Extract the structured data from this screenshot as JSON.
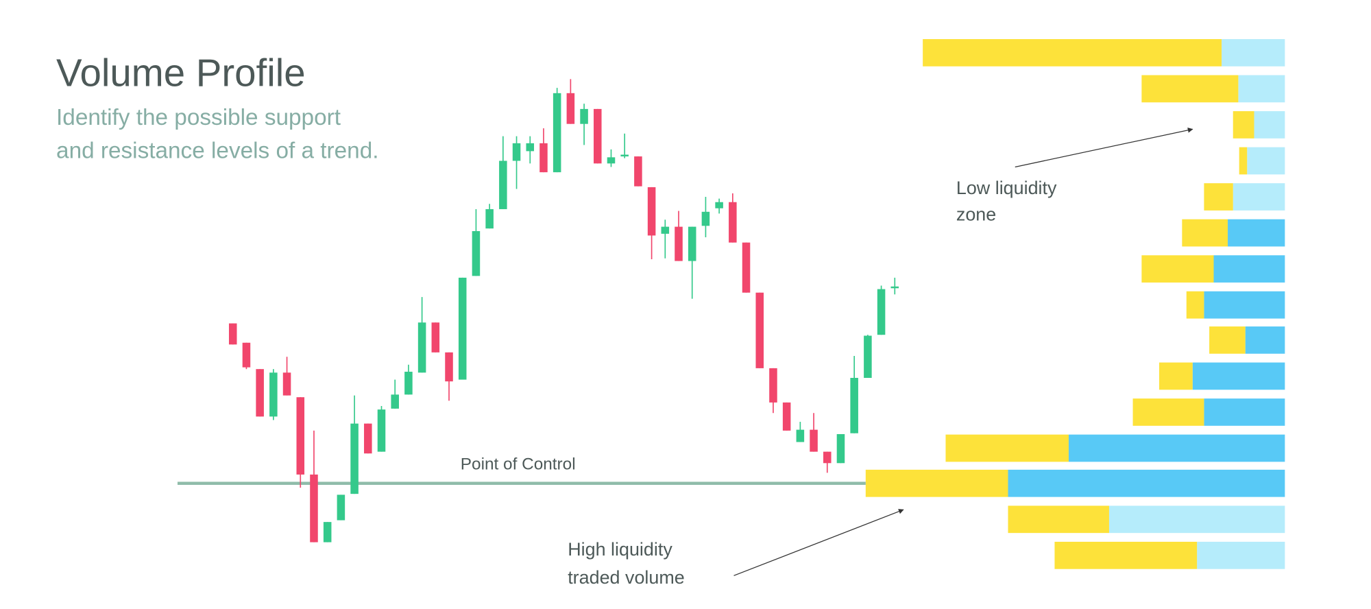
{
  "chart_data": {
    "type": "candlestick",
    "title": "Volume Profile",
    "subtitle": [
      "Identify the possible support",
      "and resistance levels of a trend."
    ],
    "annotations": [
      [
        "Point of Control"
      ],
      [
        "Low liquidity",
        "zone"
      ],
      [
        "High liquidity",
        "traded volume"
      ]
    ],
    "ylim": [
      0,
      693
    ],
    "open": [
      325,
      303,
      273,
      219,
      269,
      241,
      153,
      76,
      101,
      131,
      211,
      179,
      228,
      244,
      269,
      326,
      292,
      261,
      379,
      433,
      455,
      510,
      521,
      530,
      497,
      587,
      552,
      569,
      507,
      515,
      515,
      480,
      427,
      435,
      396,
      436,
      456,
      463,
      417,
      360,
      274,
      235,
      190,
      204,
      179,
      166,
      200,
      263,
      312,
      365
    ],
    "high": [
      325,
      303,
      273,
      273,
      287,
      241,
      203,
      99,
      130,
      243,
      211,
      231,
      261,
      278,
      355,
      326,
      292,
      377,
      455,
      461,
      538,
      538,
      538,
      547,
      593,
      603,
      575,
      569,
      523,
      541,
      515,
      480,
      443,
      453,
      435,
      469,
      467,
      473,
      417,
      360,
      274,
      235,
      213,
      223,
      179,
      199,
      288,
      312,
      368,
      377
    ],
    "low": [
      301,
      273,
      219,
      215,
      243,
      138,
      76,
      76,
      101,
      131,
      177,
      179,
      228,
      244,
      269,
      292,
      237,
      261,
      379,
      433,
      455,
      478,
      507,
      497,
      497,
      552,
      528,
      507,
      503,
      513,
      481,
      398,
      399,
      396,
      353,
      423,
      450,
      417,
      360,
      274,
      223,
      203,
      190,
      179,
      155,
      166,
      200,
      263,
      312,
      358
    ],
    "close": [
      301,
      275,
      219,
      269,
      243,
      153,
      76,
      99,
      130,
      211,
      177,
      227,
      244,
      270,
      326,
      292,
      259,
      377,
      430,
      455,
      510,
      530,
      530,
      497,
      587,
      552,
      569,
      507,
      514,
      517,
      481,
      425,
      435,
      396,
      435,
      452,
      463,
      417,
      360,
      274,
      235,
      203,
      204,
      179,
      166,
      199,
      263,
      311,
      364,
      367
    ],
    "up_color": "#34c98b",
    "down_color": "#f1466c",
    "poc_color": "#8fbcaa",
    "profile": {
      "levels": [
        633,
        592,
        551,
        510,
        469,
        428,
        387,
        346,
        306,
        265,
        224,
        183,
        143,
        102,
        61
      ],
      "xlim": [
        0,
        477
      ],
      "series": [
        {
          "color": "#fde23a",
          "values": [
            340,
            110,
            24,
            9,
            33,
            52,
            82,
            20,
            41,
            38,
            81,
            140,
            162,
            115,
            162
          ]
        },
        {
          "colors": [
            "#b5ecfb",
            "#b5ecfb",
            "#b5ecfb",
            "#b5ecfb",
            "#b5ecfb",
            "#58c9f6",
            "#58c9f6",
            "#58c9f6",
            "#58c9f6",
            "#58c9f6",
            "#58c9f6",
            "#58c9f6",
            "#58c9f6",
            "#b5ecfb",
            "#b5ecfb"
          ],
          "values": [
            72,
            53,
            35,
            43,
            59,
            65,
            81,
            92,
            45,
            105,
            92,
            246,
            315,
            200,
            100
          ]
        }
      ]
    }
  }
}
